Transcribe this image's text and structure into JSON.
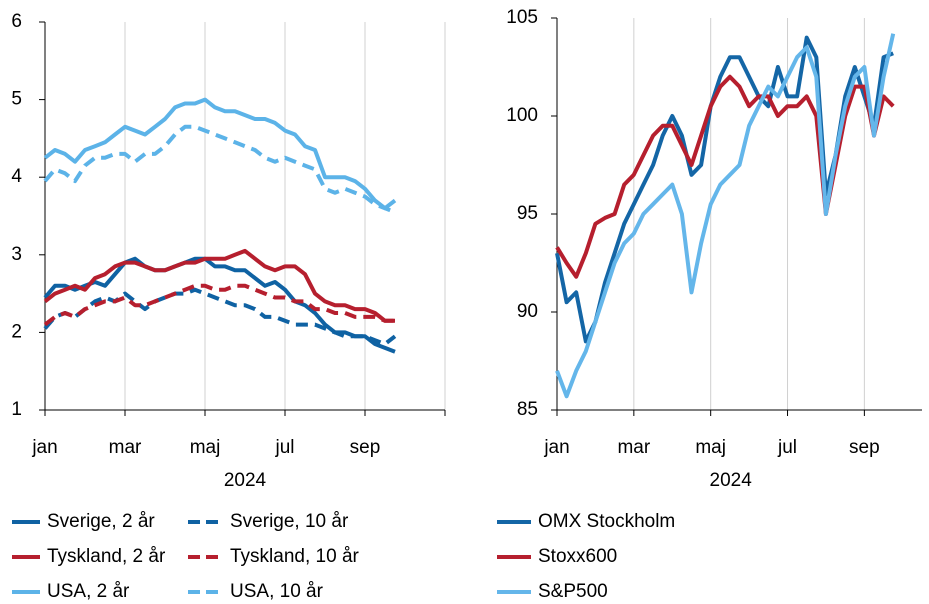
{
  "chart_data": [
    {
      "type": "line",
      "xlabel": "2024",
      "x": [
        0,
        0.25,
        0.5,
        0.75,
        1,
        1.25,
        1.5,
        1.75,
        2,
        2.25,
        2.5,
        2.75,
        3,
        3.25,
        3.5,
        3.75,
        4,
        4.25,
        4.5,
        4.75,
        5,
        5.25,
        5.5,
        5.75,
        6,
        6.25,
        6.5,
        6.75,
        7,
        7.25,
        7.5,
        7.75,
        8,
        8.25,
        8.5,
        8.75
      ],
      "xlim": [
        0,
        10
      ],
      "xticks": [
        {
          "value": 0,
          "label": "jan"
        },
        {
          "value": 2,
          "label": "mar"
        },
        {
          "value": 4,
          "label": "maj"
        },
        {
          "value": 6,
          "label": "jul"
        },
        {
          "value": 8,
          "label": "sep"
        },
        {
          "value": 10,
          "label": ""
        }
      ],
      "ylim": [
        1,
        6
      ],
      "yticks": [
        1,
        2,
        3,
        4,
        5,
        6
      ],
      "grid": "x",
      "series": [
        {
          "name": "Sverige, 2 år",
          "color": "#0f62a3",
          "style": "solid",
          "values": [
            2.45,
            2.6,
            2.6,
            2.55,
            2.6,
            2.65,
            2.6,
            2.75,
            2.9,
            2.95,
            2.85,
            2.8,
            2.8,
            2.85,
            2.9,
            2.95,
            2.95,
            2.85,
            2.85,
            2.8,
            2.8,
            2.7,
            2.6,
            2.65,
            2.55,
            2.4,
            2.35,
            2.25,
            2.1,
            2.0,
            2.0,
            1.95,
            1.95,
            1.85,
            1.8,
            1.75
          ]
        },
        {
          "name": "Sverige, 10 år",
          "color": "#0f62a3",
          "style": "dashed",
          "values": [
            2.05,
            2.2,
            2.25,
            2.2,
            2.3,
            2.4,
            2.45,
            2.4,
            2.5,
            2.4,
            2.3,
            2.4,
            2.45,
            2.5,
            2.5,
            2.55,
            2.5,
            2.45,
            2.4,
            2.35,
            2.35,
            2.3,
            2.2,
            2.2,
            2.15,
            2.1,
            2.1,
            2.1,
            2.05,
            2.0,
            1.95,
            1.95,
            1.95,
            1.9,
            1.85,
            1.95
          ]
        },
        {
          "name": "Tyskland, 2 år",
          "color": "#b61f2e",
          "style": "solid",
          "values": [
            2.4,
            2.5,
            2.55,
            2.6,
            2.55,
            2.7,
            2.75,
            2.85,
            2.9,
            2.9,
            2.85,
            2.8,
            2.8,
            2.85,
            2.9,
            2.9,
            2.95,
            2.95,
            2.95,
            3.0,
            3.05,
            2.95,
            2.85,
            2.8,
            2.85,
            2.85,
            2.75,
            2.5,
            2.4,
            2.35,
            2.35,
            2.3,
            2.3,
            2.25,
            2.15,
            2.15
          ]
        },
        {
          "name": "Tyskland, 10 år",
          "color": "#b61f2e",
          "style": "dashed",
          "values": [
            2.1,
            2.2,
            2.25,
            2.2,
            2.3,
            2.35,
            2.4,
            2.4,
            2.45,
            2.35,
            2.35,
            2.4,
            2.45,
            2.5,
            2.55,
            2.6,
            2.6,
            2.55,
            2.55,
            2.6,
            2.6,
            2.55,
            2.5,
            2.45,
            2.45,
            2.4,
            2.4,
            2.3,
            2.3,
            2.25,
            2.25,
            2.2,
            2.2,
            2.2,
            2.15,
            2.15
          ]
        },
        {
          "name": "USA, 2 år",
          "color": "#5cb3e8",
          "style": "solid",
          "values": [
            4.25,
            4.35,
            4.3,
            4.2,
            4.35,
            4.4,
            4.45,
            4.55,
            4.65,
            4.6,
            4.55,
            4.65,
            4.75,
            4.9,
            4.95,
            4.95,
            5.0,
            4.9,
            4.85,
            4.85,
            4.8,
            4.75,
            4.75,
            4.7,
            4.6,
            4.55,
            4.4,
            4.35,
            4.0,
            4.0,
            4.0,
            3.95,
            3.85,
            3.7,
            3.6,
            3.7
          ]
        },
        {
          "name": "USA, 10 år",
          "color": "#5cb3e8",
          "style": "dashed",
          "values": [
            3.95,
            4.1,
            4.05,
            3.95,
            4.15,
            4.25,
            4.25,
            4.3,
            4.3,
            4.2,
            4.3,
            4.3,
            4.4,
            4.55,
            4.65,
            4.65,
            4.6,
            4.55,
            4.5,
            4.45,
            4.4,
            4.35,
            4.25,
            4.2,
            4.25,
            4.2,
            4.15,
            4.1,
            3.85,
            3.8,
            3.85,
            3.8,
            3.75,
            3.65,
            3.6,
            3.55
          ]
        }
      ]
    },
    {
      "type": "line",
      "xlabel": "2024",
      "x": [
        0,
        0.25,
        0.5,
        0.75,
        1,
        1.25,
        1.5,
        1.75,
        2,
        2.25,
        2.5,
        2.75,
        3,
        3.25,
        3.5,
        3.75,
        4,
        4.25,
        4.5,
        4.75,
        5,
        5.25,
        5.5,
        5.75,
        6,
        6.25,
        6.5,
        6.75,
        7,
        7.25,
        7.5,
        7.75,
        8,
        8.25,
        8.5,
        8.75
      ],
      "xlim": [
        0,
        9.5
      ],
      "xticks": [
        {
          "value": 0,
          "label": "jan"
        },
        {
          "value": 2,
          "label": "mar"
        },
        {
          "value": 4,
          "label": "maj"
        },
        {
          "value": 6,
          "label": "jul"
        },
        {
          "value": 8,
          "label": "sep"
        }
      ],
      "ylim": [
        85,
        105
      ],
      "yticks": [
        85,
        90,
        95,
        100,
        105
      ],
      "grid": "x",
      "series": [
        {
          "name": "OMX Stockholm",
          "color": "#1466a6",
          "style": "solid",
          "values": [
            93,
            90.5,
            91,
            88.5,
            89.5,
            91.5,
            93,
            94.5,
            95.5,
            96.5,
            97.5,
            99,
            100,
            99,
            97,
            97.5,
            100.5,
            102,
            103,
            103,
            102,
            101,
            100.5,
            102.5,
            101,
            101,
            104,
            103,
            96,
            98,
            101,
            102.5,
            101,
            99.5,
            103,
            103.2
          ]
        },
        {
          "name": "Stoxx600",
          "color": "#b61f2e",
          "style": "solid",
          "values": [
            93.3,
            92.5,
            91.8,
            93,
            94.5,
            94.8,
            95,
            96.5,
            97,
            98,
            99,
            99.5,
            99.5,
            98.5,
            97.5,
            99,
            100.5,
            101.5,
            102,
            101.5,
            100.5,
            101,
            101,
            100,
            100.5,
            100.5,
            101,
            100,
            95,
            97.5,
            100,
            101.5,
            101.5,
            99,
            101,
            100.5
          ]
        },
        {
          "name": "S&P500",
          "color": "#64b6ea",
          "style": "solid",
          "values": [
            87,
            85.7,
            87,
            88,
            89.5,
            91,
            92.5,
            93.5,
            94,
            95,
            95.5,
            96,
            96.5,
            95,
            91,
            93.5,
            95.5,
            96.5,
            97,
            97.5,
            99.5,
            100.5,
            101.5,
            101,
            102,
            103,
            103.5,
            102,
            95,
            98,
            100.5,
            102,
            102.5,
            99,
            102,
            104.2
          ]
        }
      ]
    }
  ]
}
